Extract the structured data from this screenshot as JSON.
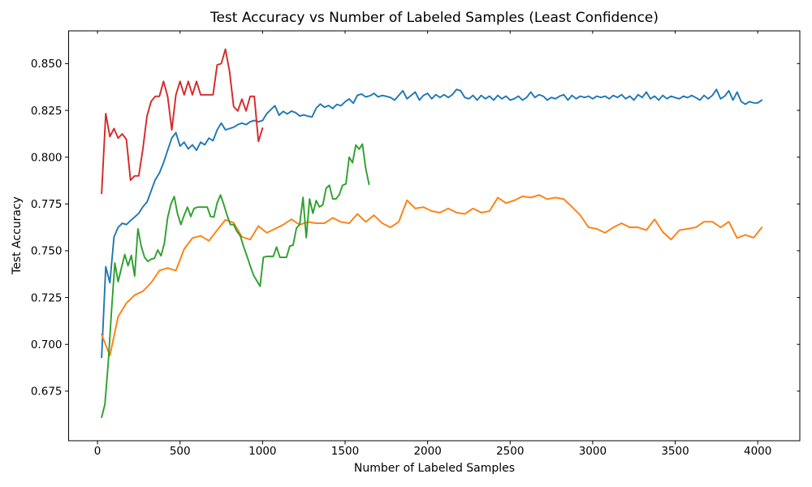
{
  "chart_data": {
    "type": "line",
    "title": "Test Accuracy vs Number of Labeled Samples (Least Confidence)",
    "xlabel": "Number of Labeled Samples",
    "ylabel": "Test Accuracy",
    "grid": false,
    "legend_position": "none",
    "xlim": [
      -175,
      4255
    ],
    "ylim": [
      0.6485,
      0.8675
    ],
    "x_ticks": [
      0,
      500,
      1000,
      1500,
      2000,
      2500,
      3000,
      3500,
      4000
    ],
    "x_tick_labels": [
      "0",
      "500",
      "1000",
      "1500",
      "2000",
      "2500",
      "3000",
      "3500",
      "4000"
    ],
    "y_ticks": [
      0.675,
      0.7,
      0.725,
      0.75,
      0.775,
      0.8,
      0.825,
      0.85
    ],
    "y_tick_labels": [
      "0.675",
      "0.700",
      "0.725",
      "0.750",
      "0.775",
      "0.800",
      "0.825",
      "0.850"
    ],
    "series": [
      {
        "name": "series-blue",
        "color": "#1f77b4",
        "x": [
          25,
          50,
          75,
          100,
          125,
          150,
          175,
          200,
          225,
          250,
          275,
          300,
          325,
          350,
          375,
          400,
          425,
          450,
          475,
          500,
          525,
          550,
          575,
          600,
          625,
          650,
          675,
          700,
          725,
          750,
          775,
          800,
          825,
          850,
          875,
          900,
          925,
          950,
          975,
          1000,
          1025,
          1050,
          1075,
          1100,
          1125,
          1150,
          1175,
          1200,
          1225,
          1250,
          1275,
          1300,
          1325,
          1350,
          1375,
          1400,
          1425,
          1450,
          1475,
          1500,
          1525,
          1550,
          1575,
          1600,
          1625,
          1650,
          1675,
          1700,
          1725,
          1750,
          1775,
          1800,
          1825,
          1850,
          1875,
          1900,
          1925,
          1950,
          1975,
          2000,
          2025,
          2050,
          2075,
          2100,
          2125,
          2150,
          2175,
          2200,
          2225,
          2250,
          2275,
          2300,
          2325,
          2350,
          2375,
          2400,
          2425,
          2450,
          2475,
          2500,
          2525,
          2550,
          2575,
          2600,
          2625,
          2650,
          2675,
          2700,
          2725,
          2750,
          2775,
          2800,
          2825,
          2850,
          2875,
          2900,
          2925,
          2950,
          2975,
          3000,
          3025,
          3050,
          3075,
          3100,
          3125,
          3150,
          3175,
          3200,
          3225,
          3250,
          3275,
          3300,
          3325,
          3350,
          3375,
          3400,
          3425,
          3450,
          3475,
          3500,
          3525,
          3550,
          3575,
          3600,
          3625,
          3650,
          3675,
          3700,
          3725,
          3750,
          3775,
          3800,
          3825,
          3850,
          3875,
          3900,
          3925,
          3950,
          3975,
          4000,
          4025
        ],
        "y": [
          0.693,
          0.7415,
          0.7329,
          0.7574,
          0.7625,
          0.7647,
          0.764,
          0.7661,
          0.768,
          0.77,
          0.7735,
          0.776,
          0.782,
          0.788,
          0.7915,
          0.797,
          0.8037,
          0.8102,
          0.8131,
          0.8059,
          0.808,
          0.8044,
          0.8066,
          0.8037,
          0.808,
          0.8066,
          0.8102,
          0.8088,
          0.8146,
          0.8182,
          0.8146,
          0.8153,
          0.816,
          0.8174,
          0.8182,
          0.8174,
          0.8189,
          0.8196,
          0.8189,
          0.8196,
          0.8232,
          0.8254,
          0.8275,
          0.8224,
          0.8245,
          0.8231,
          0.8246,
          0.8238,
          0.822,
          0.8226,
          0.8219,
          0.8215,
          0.8262,
          0.8284,
          0.8267,
          0.8276,
          0.826,
          0.8282,
          0.8275,
          0.8296,
          0.8311,
          0.8288,
          0.8331,
          0.8337,
          0.8322,
          0.8328,
          0.8341,
          0.8322,
          0.833,
          0.8325,
          0.8319,
          0.8305,
          0.833,
          0.8355,
          0.8312,
          0.833,
          0.8348,
          0.8305,
          0.833,
          0.8341,
          0.8312,
          0.8334,
          0.8319,
          0.8334,
          0.8319,
          0.8334,
          0.8362,
          0.8355,
          0.8319,
          0.8312,
          0.833,
          0.8305,
          0.833,
          0.8312,
          0.8326,
          0.8305,
          0.833,
          0.8312,
          0.8326,
          0.8305,
          0.8312,
          0.8326,
          0.8305,
          0.8319,
          0.8348,
          0.8319,
          0.8334,
          0.8326,
          0.8305,
          0.8319,
          0.8312,
          0.8326,
          0.8334,
          0.8305,
          0.833,
          0.8312,
          0.8326,
          0.8319,
          0.8326,
          0.8312,
          0.8326,
          0.8319,
          0.8326,
          0.8312,
          0.833,
          0.8319,
          0.8334,
          0.8312,
          0.8326,
          0.8305,
          0.8334,
          0.8319,
          0.8348,
          0.8312,
          0.8326,
          0.8305,
          0.833,
          0.8312,
          0.8326,
          0.8318,
          0.8312,
          0.8326,
          0.8318,
          0.833,
          0.8318,
          0.8305,
          0.833,
          0.8312,
          0.833,
          0.8362,
          0.8312,
          0.8326,
          0.8355,
          0.8305,
          0.8348,
          0.8297,
          0.8283,
          0.8297,
          0.829,
          0.829,
          0.8305
        ]
      },
      {
        "name": "series-orange",
        "color": "#ff7f0e",
        "x": [
          25,
          75,
          125,
          175,
          225,
          275,
          325,
          375,
          425,
          475,
          525,
          575,
          625,
          675,
          725,
          775,
          825,
          875,
          925,
          975,
          1025,
          1075,
          1125,
          1175,
          1225,
          1275,
          1325,
          1375,
          1425,
          1475,
          1525,
          1575,
          1625,
          1675,
          1725,
          1775,
          1825,
          1875,
          1925,
          1975,
          2025,
          2075,
          2125,
          2175,
          2225,
          2275,
          2325,
          2375,
          2425,
          2475,
          2525,
          2575,
          2625,
          2675,
          2725,
          2775,
          2825,
          2875,
          2925,
          2975,
          3025,
          3075,
          3125,
          3175,
          3225,
          3275,
          3325,
          3375,
          3425,
          3475,
          3525,
          3575,
          3625,
          3675,
          3725,
          3775,
          3825,
          3875,
          3925,
          3975,
          4025
        ],
        "y": [
          0.7054,
          0.694,
          0.7148,
          0.722,
          0.7263,
          0.7284,
          0.7329,
          0.7394,
          0.7408,
          0.7394,
          0.7509,
          0.7568,
          0.758,
          0.7553,
          0.761,
          0.7665,
          0.765,
          0.7574,
          0.756,
          0.7632,
          0.7596,
          0.7617,
          0.7639,
          0.7668,
          0.7639,
          0.7654,
          0.7647,
          0.7647,
          0.7676,
          0.7654,
          0.7647,
          0.7697,
          0.7654,
          0.769,
          0.7647,
          0.7625,
          0.7654,
          0.777,
          0.7726,
          0.7733,
          0.7712,
          0.7704,
          0.7726,
          0.7704,
          0.7697,
          0.7726,
          0.7704,
          0.7712,
          0.7784,
          0.7755,
          0.7769,
          0.7791,
          0.7784,
          0.7798,
          0.7776,
          0.7784,
          0.7776,
          0.7734,
          0.769,
          0.7625,
          0.7617,
          0.7596,
          0.7625,
          0.7647,
          0.7625,
          0.7625,
          0.761,
          0.7668,
          0.76,
          0.756,
          0.761,
          0.7617,
          0.7625,
          0.7655,
          0.7655,
          0.7625,
          0.7655,
          0.7568,
          0.7585,
          0.757,
          0.7625
        ]
      },
      {
        "name": "series-green",
        "color": "#2ca02c",
        "x": [
          25,
          45,
          65,
          85,
          105,
          125,
          145,
          165,
          185,
          205,
          225,
          245,
          265,
          285,
          305,
          325,
          345,
          365,
          385,
          405,
          425,
          445,
          465,
          485,
          505,
          525,
          545,
          565,
          585,
          605,
          625,
          645,
          665,
          685,
          705,
          725,
          745,
          765,
          785,
          805,
          825,
          845,
          865,
          885,
          905,
          925,
          945,
          965,
          985,
          1005,
          1025,
          1045,
          1065,
          1085,
          1105,
          1125,
          1145,
          1165,
          1185,
          1205,
          1225,
          1245,
          1265,
          1285,
          1305,
          1325,
          1345,
          1365,
          1385,
          1405,
          1425,
          1445,
          1465,
          1485,
          1505,
          1525,
          1545,
          1565,
          1585,
          1605,
          1625,
          1645
        ],
        "y": [
          0.661,
          0.668,
          0.69,
          0.718,
          0.7435,
          0.7335,
          0.7408,
          0.748,
          0.742,
          0.7475,
          0.7365,
          0.7617,
          0.7524,
          0.7465,
          0.7443,
          0.7455,
          0.746,
          0.7504,
          0.7473,
          0.754,
          0.7677,
          0.775,
          0.779,
          0.7697,
          0.764,
          0.769,
          0.7733,
          0.7683,
          0.7726,
          0.7733,
          0.7733,
          0.7733,
          0.7733,
          0.7683,
          0.768,
          0.7755,
          0.7798,
          0.7747,
          0.769,
          0.764,
          0.764,
          0.7603,
          0.758,
          0.7523,
          0.7473,
          0.742,
          0.737,
          0.734,
          0.731,
          0.7465,
          0.747,
          0.747,
          0.747,
          0.752,
          0.7465,
          0.7465,
          0.7465,
          0.7525,
          0.753,
          0.762,
          0.764,
          0.7785,
          0.757,
          0.7777,
          0.77,
          0.7768,
          0.7734,
          0.7745,
          0.7834,
          0.785,
          0.7777,
          0.7777,
          0.78,
          0.785,
          0.7857,
          0.8,
          0.797,
          0.8065,
          0.8043,
          0.807,
          0.794,
          0.7855
        ]
      },
      {
        "name": "series-red",
        "color": "#d62728",
        "x": [
          25,
          50,
          75,
          100,
          125,
          150,
          175,
          200,
          225,
          250,
          275,
          300,
          325,
          350,
          375,
          400,
          425,
          450,
          475,
          500,
          525,
          550,
          575,
          600,
          625,
          650,
          675,
          700,
          725,
          750,
          775,
          800,
          825,
          850,
          875,
          900,
          925,
          950,
          975,
          1000
        ],
        "y": [
          0.7806,
          0.8233,
          0.811,
          0.8153,
          0.8102,
          0.8124,
          0.8095,
          0.7877,
          0.79,
          0.79,
          0.8045,
          0.822,
          0.8298,
          0.8325,
          0.8325,
          0.8405,
          0.8325,
          0.8146,
          0.8333,
          0.8405,
          0.8333,
          0.8405,
          0.8333,
          0.8405,
          0.8333,
          0.8333,
          0.8333,
          0.8333,
          0.8493,
          0.85,
          0.8577,
          0.8458,
          0.827,
          0.8247,
          0.831,
          0.8247,
          0.8325,
          0.8325,
          0.8084,
          0.8155
        ]
      }
    ]
  }
}
